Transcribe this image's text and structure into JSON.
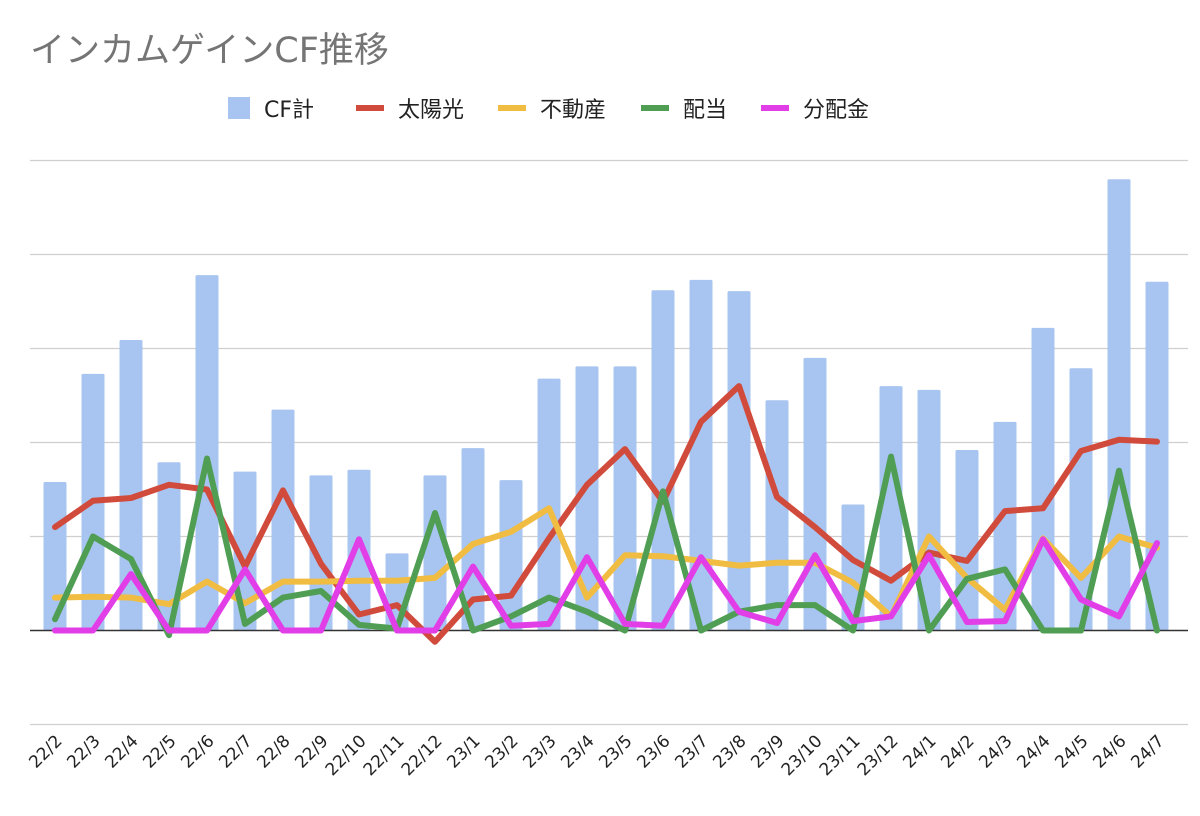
{
  "chart_data": {
    "type": "bar",
    "title": "インカムゲインCF推移",
    "categories": [
      "22/2",
      "22/3",
      "22/4",
      "22/5",
      "22/6",
      "22/7",
      "22/8",
      "22/9",
      "22/10",
      "22/11",
      "22/12",
      "23/1",
      "23/2",
      "23/3",
      "23/4",
      "23/5",
      "23/6",
      "23/7",
      "23/8",
      "23/9",
      "23/10",
      "23/11",
      "23/12",
      "24/1",
      "24/2",
      "24/3",
      "24/4",
      "24/5",
      "24/6",
      "24/7"
    ],
    "ylim": [
      -1,
      5
    ],
    "grid": true,
    "y_tick_labels_shown": false,
    "legend_position": "top",
    "series": [
      {
        "name": "CF計",
        "type": "bar",
        "color": "#a8c4f0",
        "values": [
          1.58,
          2.73,
          3.09,
          1.79,
          3.78,
          1.69,
          2.35,
          1.65,
          1.71,
          0.82,
          1.65,
          1.94,
          1.6,
          2.68,
          2.81,
          2.81,
          3.62,
          3.73,
          3.61,
          2.45,
          2.9,
          1.34,
          2.6,
          2.56,
          1.92,
          2.22,
          3.22,
          2.79,
          4.8,
          3.71
        ]
      },
      {
        "name": "太陽光",
        "type": "line",
        "color": "#d14b3c",
        "values": [
          1.1,
          1.38,
          1.41,
          1.55,
          1.5,
          0.68,
          1.49,
          0.71,
          0.17,
          0.27,
          -0.12,
          0.33,
          0.37,
          0.98,
          1.55,
          1.93,
          1.37,
          2.22,
          2.6,
          1.42,
          1.1,
          0.75,
          0.53,
          0.83,
          0.74,
          1.27,
          1.3,
          1.91,
          2.03,
          2.01
        ]
      },
      {
        "name": "不動産",
        "type": "line",
        "color": "#f0bd42",
        "values": [
          0.35,
          0.36,
          0.35,
          0.28,
          0.52,
          0.29,
          0.52,
          0.52,
          0.53,
          0.53,
          0.56,
          0.92,
          1.05,
          1.3,
          0.35,
          0.8,
          0.79,
          0.74,
          0.69,
          0.72,
          0.72,
          0.51,
          0.15,
          1.0,
          0.56,
          0.22,
          0.98,
          0.56,
          1.0,
          0.88
        ]
      },
      {
        "name": "配当",
        "type": "line",
        "color": "#4f9e54",
        "values": [
          0.12,
          1.0,
          0.76,
          -0.05,
          1.83,
          0.07,
          0.35,
          0.42,
          0.06,
          0.02,
          1.25,
          0.0,
          0.15,
          0.35,
          0.2,
          0.0,
          1.48,
          0.0,
          0.2,
          0.27,
          0.27,
          0.0,
          1.85,
          0.0,
          0.55,
          0.65,
          0.0,
          0.0,
          1.7,
          0.0
        ]
      },
      {
        "name": "分配金",
        "type": "line",
        "color": "#e23ee8",
        "values": [
          0.0,
          0.0,
          0.6,
          0.0,
          0.0,
          0.65,
          0.0,
          0.0,
          0.97,
          0.0,
          0.0,
          0.68,
          0.05,
          0.07,
          0.78,
          0.07,
          0.05,
          0.78,
          0.2,
          0.08,
          0.8,
          0.1,
          0.15,
          0.8,
          0.09,
          0.1,
          0.97,
          0.33,
          0.15,
          0.93
        ]
      }
    ]
  },
  "icons": {
    "legend_marker_bar": "square-swatch",
    "legend_marker_line": "line-swatch"
  }
}
